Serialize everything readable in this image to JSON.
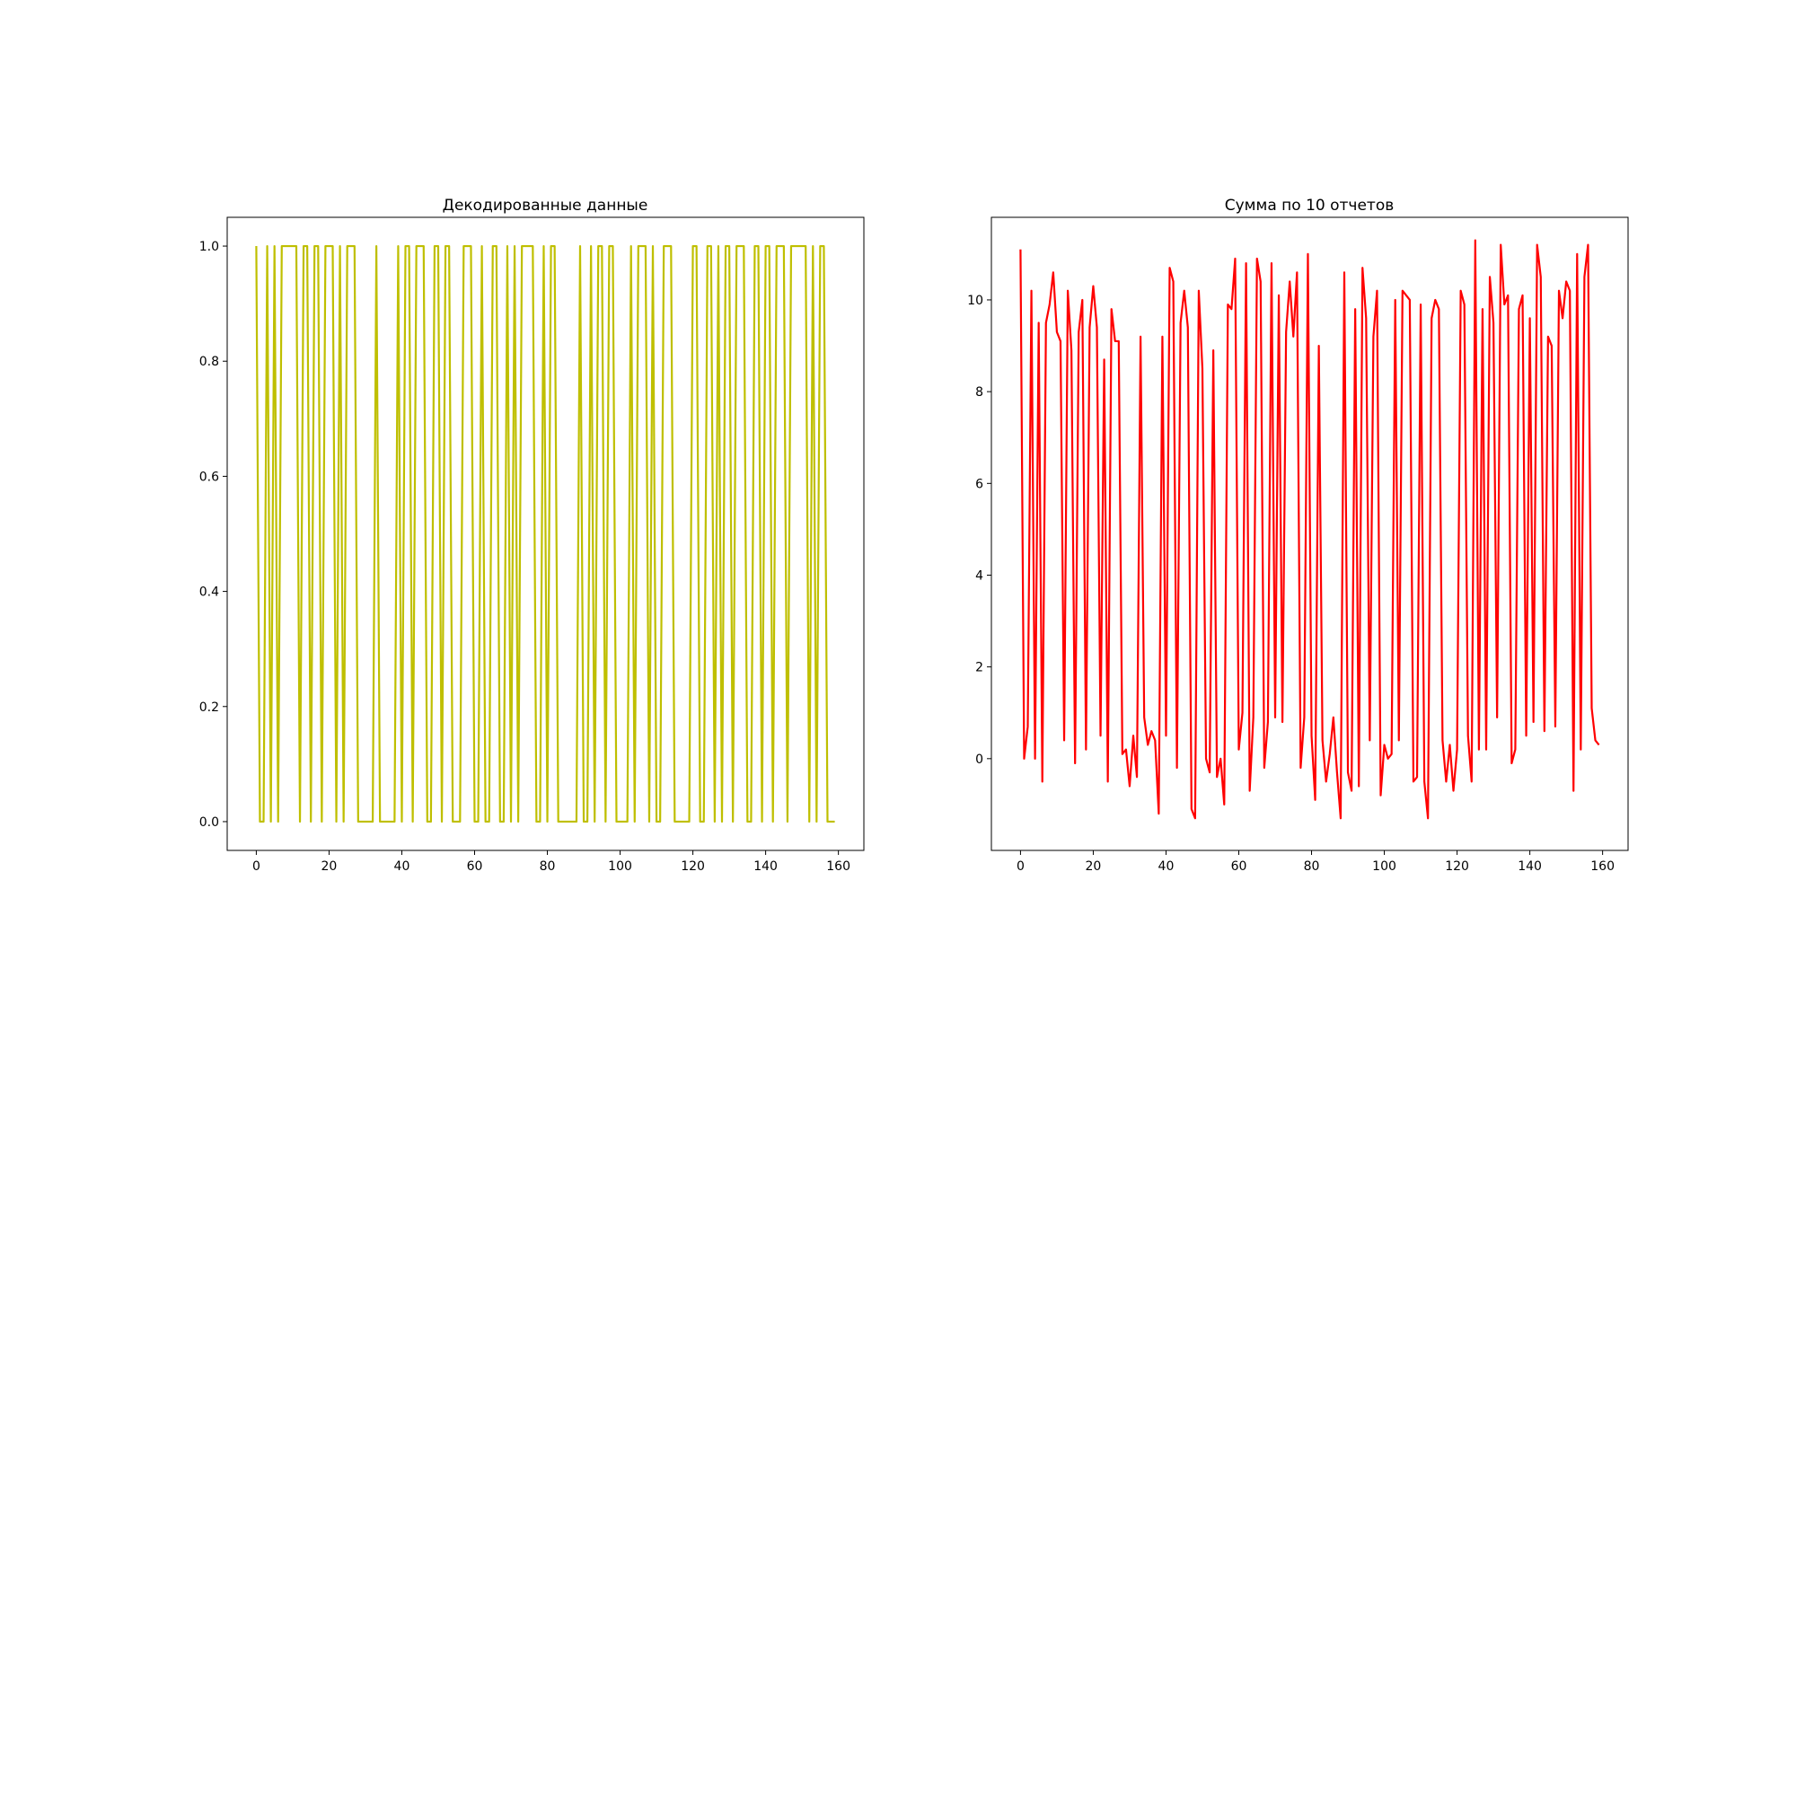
{
  "chart_data": [
    {
      "type": "line",
      "title": "Декодированные данные",
      "xlabel": "",
      "ylabel": "",
      "color": "#bfbf00",
      "xlim": [
        -8,
        167
      ],
      "ylim": [
        -0.05,
        1.05
      ],
      "xticks": [
        0,
        20,
        40,
        60,
        80,
        100,
        120,
        140,
        160
      ],
      "xtick_labels": [
        "0",
        "20",
        "40",
        "60",
        "80",
        "100",
        "120",
        "140",
        "160"
      ],
      "yticks": [
        0.0,
        0.2,
        0.4,
        0.6,
        0.8,
        1.0
      ],
      "ytick_labels": [
        "0.0",
        "0.2",
        "0.4",
        "0.6",
        "0.8",
        "1.0"
      ],
      "x_start": 0,
      "values": [
        1,
        0,
        0,
        1,
        0,
        1,
        0,
        1,
        1,
        1,
        1,
        1,
        0,
        1,
        1,
        0,
        1,
        1,
        0,
        1,
        1,
        1,
        0,
        1,
        0,
        1,
        1,
        1,
        0,
        0,
        0,
        0,
        0,
        1,
        0,
        0,
        0,
        0,
        0,
        1,
        0,
        1,
        1,
        0,
        1,
        1,
        1,
        0,
        0,
        1,
        1,
        0,
        1,
        1,
        0,
        0,
        0,
        1,
        1,
        1,
        0,
        0,
        1,
        0,
        0,
        1,
        1,
        0,
        0,
        1,
        0,
        1,
        0,
        1,
        1,
        1,
        1,
        0,
        0,
        1,
        0,
        1,
        1,
        0,
        0,
        0,
        0,
        0,
        0,
        1,
        0,
        0,
        1,
        0,
        1,
        1,
        0,
        1,
        1,
        0,
        0,
        0,
        0,
        1,
        0,
        1,
        1,
        1,
        0,
        1,
        0,
        0,
        1,
        1,
        1,
        0,
        0,
        0,
        0,
        0,
        1,
        1,
        0,
        0,
        1,
        1,
        0,
        1,
        0,
        1,
        1,
        0,
        1,
        1,
        1,
        0,
        0,
        1,
        1,
        0,
        1,
        1,
        0,
        1,
        1,
        1,
        0,
        1,
        1,
        1,
        1,
        1,
        0,
        1,
        0,
        1,
        1,
        0,
        0,
        0
      ]
    },
    {
      "type": "line",
      "title": "Сумма по 10 отчетов",
      "xlabel": "",
      "ylabel": "",
      "color": "#ff0000",
      "xlim": [
        -8,
        167
      ],
      "ylim": [
        -2.0,
        11.8
      ],
      "xticks": [
        0,
        20,
        40,
        60,
        80,
        100,
        120,
        140,
        160
      ],
      "xtick_labels": [
        "0",
        "20",
        "40",
        "60",
        "80",
        "100",
        "120",
        "140",
        "160"
      ],
      "yticks": [
        0,
        2,
        4,
        6,
        8,
        10
      ],
      "ytick_labels": [
        "0",
        "2",
        "4",
        "6",
        "8",
        "10"
      ],
      "x_start": 0,
      "values": [
        11.1,
        0.0,
        0.7,
        10.2,
        0.0,
        9.5,
        -0.5,
        9.5,
        9.9,
        10.6,
        9.3,
        9.1,
        0.4,
        10.2,
        8.9,
        -0.1,
        9.3,
        10.0,
        0.2,
        9.4,
        10.3,
        9.4,
        0.5,
        8.7,
        -0.5,
        9.8,
        9.1,
        9.1,
        0.1,
        0.2,
        -0.6,
        0.5,
        -0.4,
        9.2,
        0.9,
        0.3,
        0.6,
        0.4,
        -1.2,
        9.2,
        0.5,
        10.7,
        10.4,
        -0.2,
        9.5,
        10.2,
        9.4,
        -1.1,
        -1.3,
        10.2,
        8.5,
        0.0,
        -0.3,
        8.9,
        -0.4,
        0.0,
        -1.0,
        9.9,
        9.8,
        10.9,
        0.2,
        1.0,
        10.8,
        -0.7,
        0.9,
        10.9,
        10.4,
        -0.2,
        0.8,
        10.8,
        0.9,
        10.1,
        0.8,
        9.3,
        10.4,
        9.2,
        10.6,
        -0.2,
        0.9,
        11.0,
        0.5,
        -0.9,
        9.0,
        0.4,
        -0.5,
        0.1,
        0.9,
        -0.3,
        -1.3,
        10.6,
        -0.3,
        -0.7,
        9.8,
        -0.6,
        10.7,
        9.6,
        0.4,
        9.2,
        10.2,
        -0.8,
        0.3,
        0.0,
        0.1,
        10.0,
        0.4,
        10.2,
        10.1,
        10.0,
        -0.5,
        -0.4,
        9.9,
        -0.5,
        -1.3,
        9.6,
        10.0,
        9.8,
        0.4,
        -0.5,
        0.3,
        -0.7,
        0.2,
        10.2,
        9.9,
        0.5,
        -0.5,
        11.3,
        0.2,
        9.8,
        0.2,
        10.5,
        9.5,
        0.9,
        11.2,
        9.9,
        10.1,
        -0.1,
        0.2,
        9.8,
        10.1,
        0.5,
        9.6,
        0.8,
        11.2,
        10.5,
        0.6,
        9.2,
        9.0,
        0.7,
        10.2,
        9.6,
        10.4,
        10.2,
        -0.7,
        11.0,
        0.2,
        10.5,
        11.2,
        1.1,
        0.4,
        0.3
      ]
    }
  ]
}
